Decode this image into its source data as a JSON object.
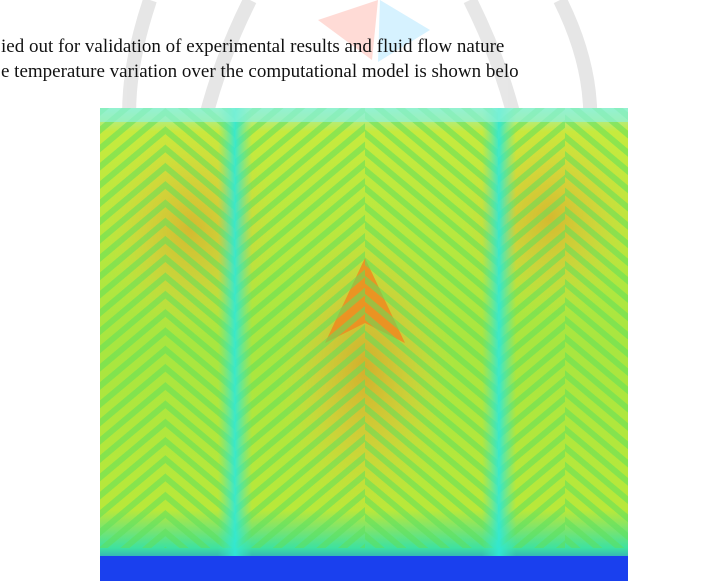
{
  "paragraph": {
    "lines": [
      "ied out for validation of experimental results and fluid flow nature",
      "e temperature variation over the computational model is shown belo"
    ]
  }
}
